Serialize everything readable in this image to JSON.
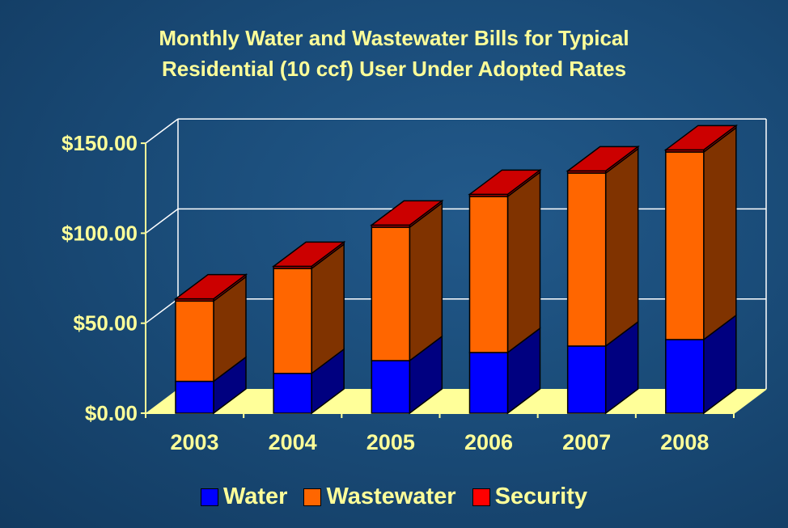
{
  "chart_data": {
    "type": "bar",
    "stacked": true,
    "three_d": true,
    "title_lines": [
      "Monthly Water and Wastewater Bills for Typical",
      "Residential (10 ccf) User Under Adopted Rates"
    ],
    "categories": [
      "2003",
      "2004",
      "2005",
      "2006",
      "2007",
      "2008"
    ],
    "series": [
      {
        "name": "Water",
        "color": "#0000ff",
        "values": [
          17.7,
          22.1,
          29.2,
          33.7,
          37.3,
          40.9
        ]
      },
      {
        "name": "Wastewater",
        "color": "#ff6600",
        "values": [
          44.6,
          58.3,
          74.1,
          86.7,
          96.1,
          104.2
        ]
      },
      {
        "name": "Security",
        "color": "#cc0000",
        "values": [
          1.2,
          1.2,
          1.2,
          1.2,
          1.2,
          1.2
        ]
      }
    ],
    "yticks": [
      "$0.00",
      "$50.00",
      "$100.00",
      "$150.00"
    ],
    "ylim": [
      0,
      150
    ],
    "grid": true,
    "legend_position": "bottom",
    "floor_color": "#ffff99",
    "text_color": "#ffff99"
  }
}
